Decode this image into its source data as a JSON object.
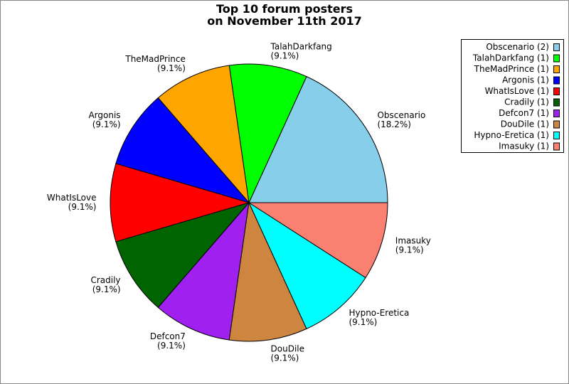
{
  "chart_data": {
    "type": "pie",
    "title": [
      "Top 10 forum posters",
      "on November 11th 2017"
    ],
    "categories": [
      "Obscenario",
      "TalahDarkfang",
      "TheMadPrince",
      "Argonis",
      "WhatIsLove",
      "Cradily",
      "Defcon7",
      "DouDile",
      "Hypno-Eretica",
      "Imasuky"
    ],
    "values": [
      18.2,
      9.1,
      9.1,
      9.1,
      9.1,
      9.1,
      9.1,
      9.1,
      9.1,
      9.1
    ],
    "value_labels": [
      "(18.2%)",
      "(9.1%)",
      "(9.1%)",
      "(9.1%)",
      "(9.1%)",
      "(9.1%)",
      "(9.1%)",
      "(9.1%)",
      "(9.1%)",
      "(9.1%)"
    ],
    "colors": [
      "#87ceeb",
      "#00ff00",
      "#ffa500",
      "#0000ff",
      "#ff0000",
      "#006400",
      "#a020f0",
      "#cd853f",
      "#00ffff",
      "#fa8072"
    ],
    "legend_labels": [
      "Obscenario (2)",
      "TalahDarkfang (1)",
      "TheMadPrince (1)",
      "Argonis (1)",
      "WhatIsLove (1)",
      "Cradily (1)",
      "Defcon7 (1)",
      "DouDile (1)",
      "Hypno-Eretica (1)",
      "Imasuky (1)"
    ],
    "legend_position": "top-right"
  }
}
